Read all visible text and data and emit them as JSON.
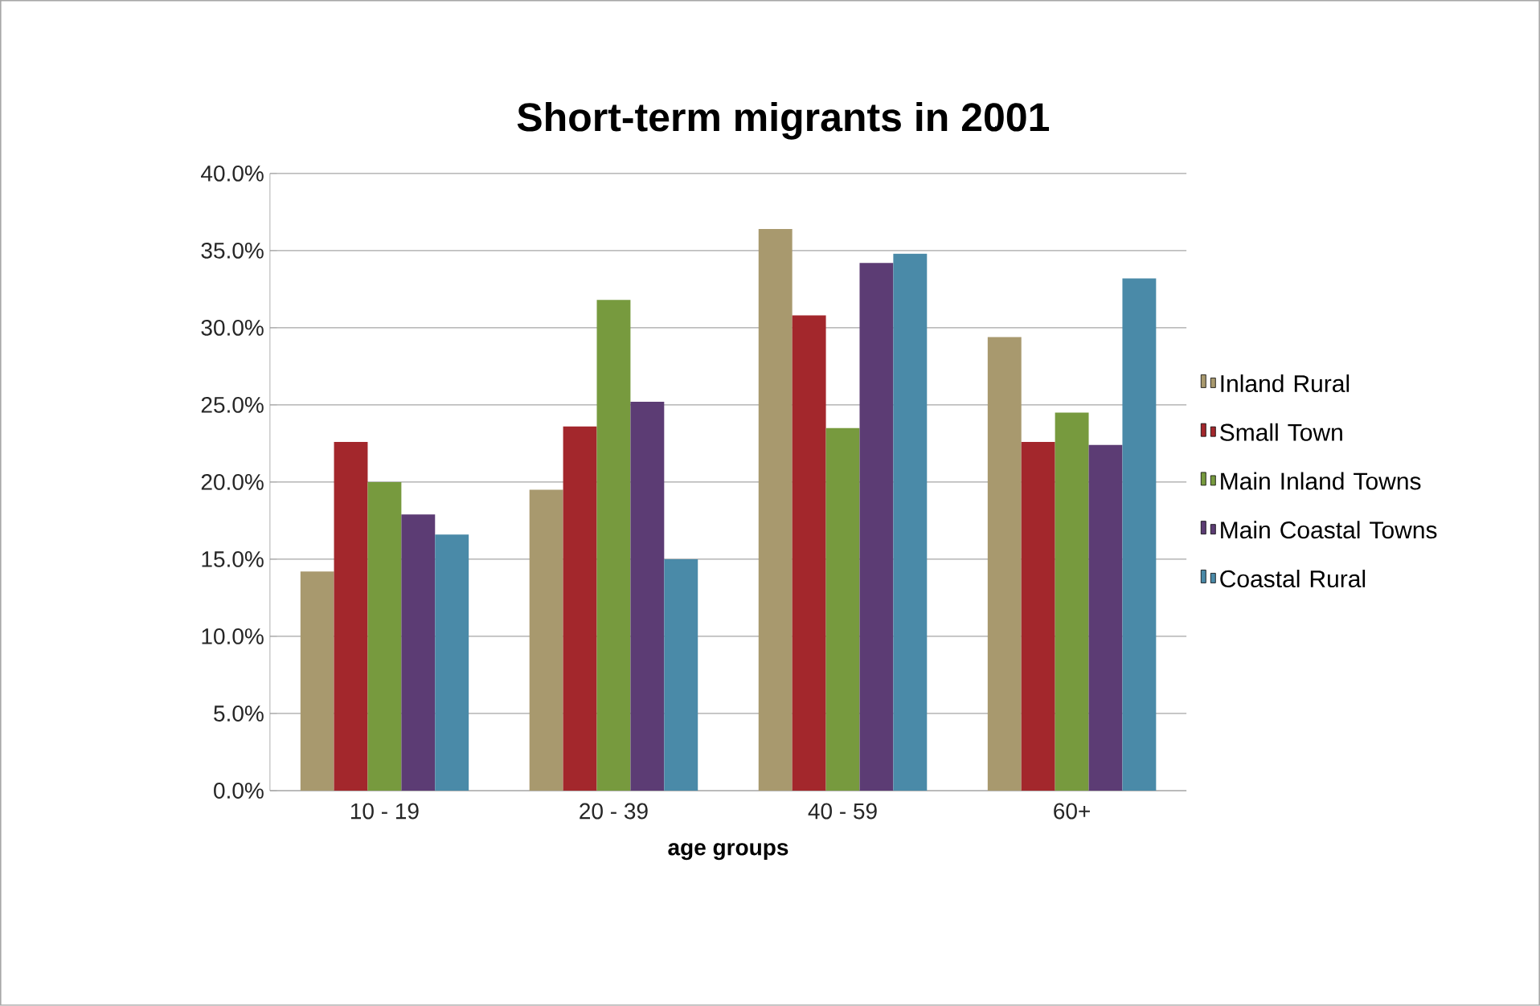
{
  "chart_data": {
    "type": "bar",
    "title": "Short-term migrants in 2001",
    "xlabel": "age groups",
    "categories": [
      "10 - 19",
      "20 - 39",
      "40 - 59",
      "60+"
    ],
    "series": [
      {
        "name": "Inland Rural",
        "color": "#a8996e",
        "values": [
          14.2,
          19.5,
          36.4,
          29.4
        ]
      },
      {
        "name": "Small Town",
        "color": "#a3272c",
        "values": [
          22.6,
          23.6,
          30.8,
          22.6
        ]
      },
      {
        "name": "Main Inland Towns",
        "color": "#779a3e",
        "values": [
          20.0,
          31.8,
          23.5,
          24.5
        ]
      },
      {
        "name": "Main Coastal Towns",
        "color": "#5c3c74",
        "values": [
          17.9,
          25.2,
          34.2,
          22.4
        ]
      },
      {
        "name": "Coastal Rural",
        "color": "#4a8aa8",
        "values": [
          16.6,
          15.0,
          34.8,
          33.2
        ]
      }
    ],
    "ylim": [
      0,
      40
    ],
    "yticks": [
      {
        "value": 0,
        "label": "0.0%"
      },
      {
        "value": 5,
        "label": "5.0%"
      },
      {
        "value": 10,
        "label": "10.0%"
      },
      {
        "value": 15,
        "label": "15.0%"
      },
      {
        "value": 20,
        "label": "20.0%"
      },
      {
        "value": 25,
        "label": "25.0%"
      },
      {
        "value": 30,
        "label": "30.0%"
      },
      {
        "value": 35,
        "label": "35.0%"
      },
      {
        "value": 40,
        "label": "40.0%"
      }
    ],
    "grid": "y",
    "legend": "right"
  }
}
